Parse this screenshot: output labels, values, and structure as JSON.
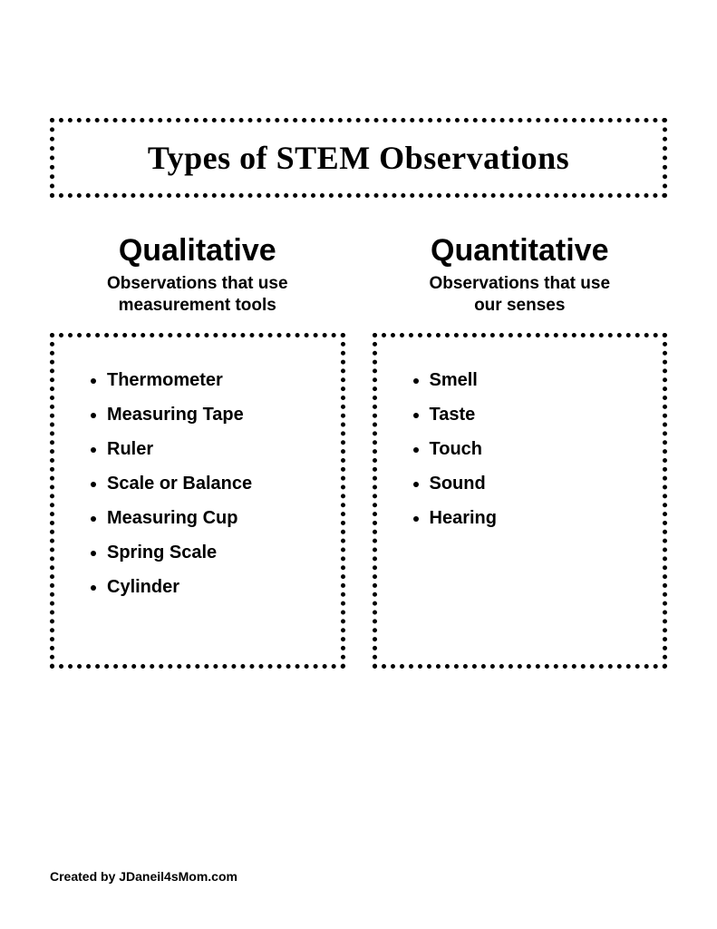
{
  "title": "Types of STEM Observations",
  "left": {
    "heading": "Qualitative",
    "subheading_line1": "Observations that use",
    "subheading_line2": "measurement tools",
    "items": [
      "Thermometer",
      "Measuring Tape",
      "Ruler",
      "Scale or Balance",
      "Measuring Cup",
      "Spring Scale",
      "Cylinder"
    ]
  },
  "right": {
    "heading": "Quantitative",
    "subheading_line1": "Observations that use",
    "subheading_line2": "our senses",
    "items": [
      "Smell",
      "Taste",
      "Touch",
      "Sound",
      "Hearing"
    ]
  },
  "credit": "Created by JDaneil4sMom.com",
  "colors": {
    "text": "#000000",
    "background": "#ffffff",
    "border": "#000000"
  }
}
